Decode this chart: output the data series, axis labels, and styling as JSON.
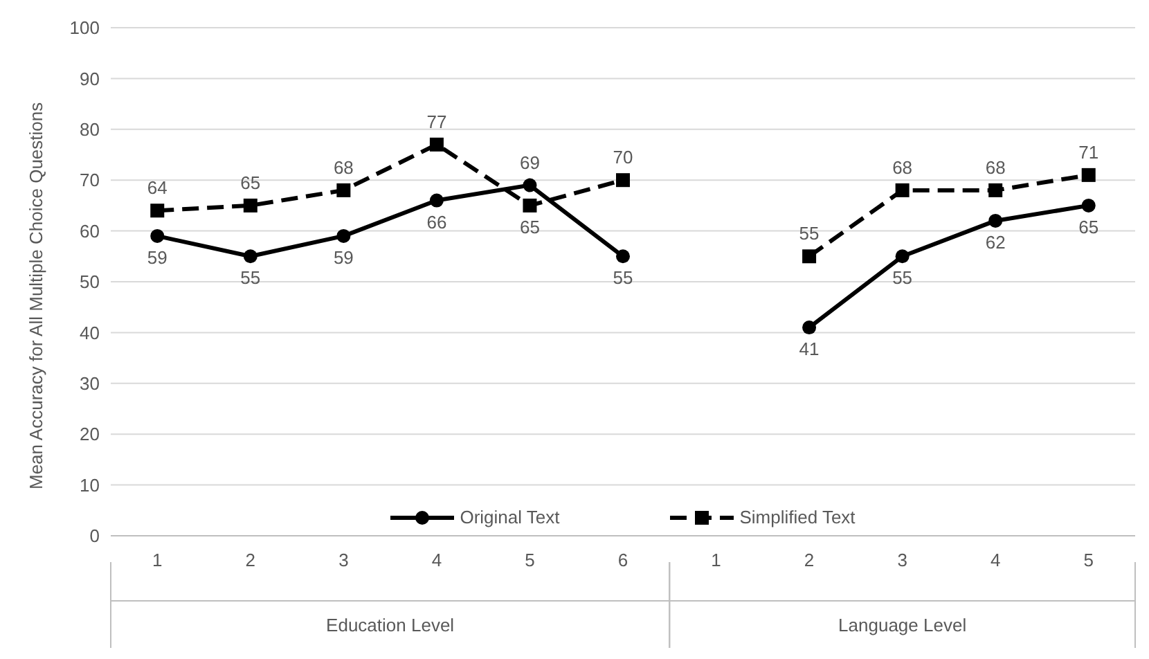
{
  "chart_data": {
    "type": "line",
    "ylabel": "Mean Accuracy for All Multiple Choice Questions",
    "categories": [
      "1",
      "2",
      "3",
      "4",
      "5",
      "6",
      "1",
      "2",
      "3",
      "4",
      "5"
    ],
    "series": [
      {
        "name": "Original Text",
        "color": "#000000",
        "marker": "circle",
        "line_style": "solid",
        "values": [
          59,
          55,
          59,
          66,
          69,
          55,
          null,
          41,
          55,
          62,
          65
        ]
      },
      {
        "name": "Simplified Text",
        "color": "#000000",
        "marker": "square",
        "line_style": "dashed",
        "values": [
          64,
          65,
          68,
          77,
          65,
          70,
          null,
          55,
          68,
          68,
          71
        ]
      }
    ],
    "annotations": [
      "Education Level",
      "Language Level"
    ],
    "ylim": [
      0,
      100
    ],
    "yticks": [
      0,
      10,
      20,
      30,
      40,
      50,
      60,
      70,
      80,
      90,
      100
    ],
    "grid": "y",
    "legend": "bottom",
    "data_labels": true
  }
}
